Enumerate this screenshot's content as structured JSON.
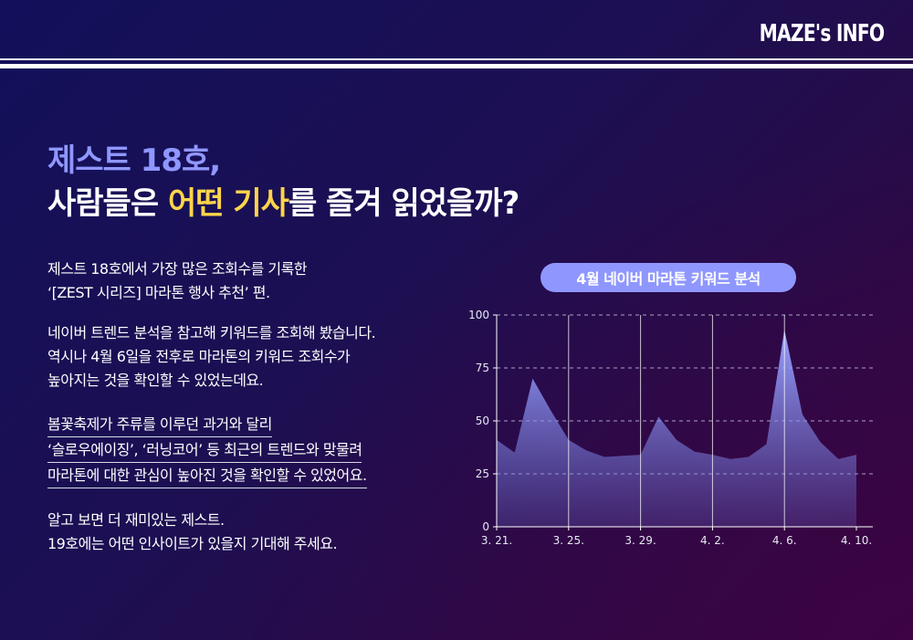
{
  "header": {
    "brand": "MAZE's INFO"
  },
  "title": {
    "line1": "제스트 18호,",
    "line2_part1": "사람들은 ",
    "line2_highlight": "어떤 기사",
    "line2_part2": "를 즐겨 읽었을까?"
  },
  "body": {
    "p1": [
      "제스트 18호에서 가장 많은 조회수를 기록한",
      "‘[ZEST 시리즈] 마라톤 행사 추천’ 편."
    ],
    "p2": [
      "네이버 트렌드 분석을 참고해 키워드를 조회해 봤습니다.",
      "역시나 4월 6일을 전후로 마라톤의 키워드 조회수가",
      "높아지는 것을 확인할 수 있었는데요."
    ],
    "p3": [
      "봄꽃축제가 주류를 이루던 과거와 달리",
      "‘슬로우에이징’, ‘러닝코어’ 등 최근의 트렌드와 맞물려",
      "마라톤에 대한 관심이 높아진 것을 확인할 수 있었어요."
    ],
    "p4": [
      "알고 보면 더 재미있는 제스트.",
      "19호에는 어떤 인사이트가 있을지 기대해 주세요."
    ]
  },
  "colors": {
    "accent": "#8f97ff",
    "highlight": "#ffd54a"
  },
  "chart_data": {
    "type": "area",
    "title": "4월 네이버 마라톤 키워드 분석",
    "x_tick_labels": [
      "3. 21.",
      "3. 25.",
      "3. 29.",
      "4. 2.",
      "4. 6.",
      "4. 10."
    ],
    "y_tick_labels": [
      "0",
      "25",
      "50",
      "75",
      "100"
    ],
    "ylim": [
      0,
      100
    ],
    "grid": true,
    "x": [
      "3.21",
      "3.22",
      "3.23",
      "3.24",
      "3.25",
      "3.26",
      "3.27",
      "3.28",
      "3.29",
      "3.30",
      "3.31",
      "4.1",
      "4.2",
      "4.3",
      "4.4",
      "4.5",
      "4.6",
      "4.7",
      "4.8",
      "4.9",
      "4.10"
    ],
    "values": [
      41,
      35,
      70,
      55,
      41,
      36,
      33,
      33.5,
      34,
      52,
      41,
      35.5,
      34,
      32,
      33,
      39,
      93,
      53,
      40,
      32,
      34
    ]
  }
}
